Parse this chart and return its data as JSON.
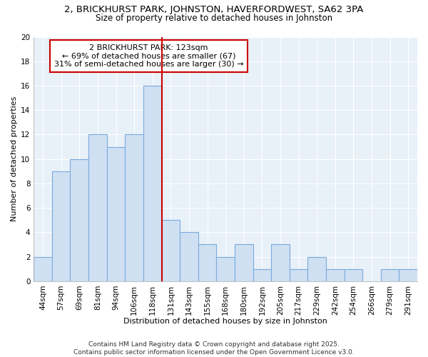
{
  "title": "2, BRICKHURST PARK, JOHNSTON, HAVERFORDWEST, SA62 3PA",
  "subtitle": "Size of property relative to detached houses in Johnston",
  "xlabel": "Distribution of detached houses by size in Johnston",
  "ylabel": "Number of detached properties",
  "categories": [
    "44sqm",
    "57sqm",
    "69sqm",
    "81sqm",
    "94sqm",
    "106sqm",
    "118sqm",
    "131sqm",
    "143sqm",
    "155sqm",
    "168sqm",
    "180sqm",
    "192sqm",
    "205sqm",
    "217sqm",
    "229sqm",
    "242sqm",
    "254sqm",
    "266sqm",
    "279sqm",
    "291sqm"
  ],
  "values": [
    2,
    9,
    10,
    12,
    11,
    12,
    16,
    5,
    4,
    3,
    2,
    3,
    1,
    3,
    1,
    2,
    1,
    1,
    0,
    1,
    1
  ],
  "bar_color": "#cfe0f3",
  "bar_edge_color": "#7aaadc",
  "vline_x_index": 6,
  "vline_color": "#cc0000",
  "ylim": [
    0,
    20
  ],
  "yticks": [
    0,
    2,
    4,
    6,
    8,
    10,
    12,
    14,
    16,
    18,
    20
  ],
  "plot_bg_color": "#e8f0f8",
  "grid_color": "#ffffff",
  "annotation_title": "2 BRICKHURST PARK: 123sqm",
  "annotation_line2": "← 69% of detached houses are smaller (67)",
  "annotation_line3": "31% of semi-detached houses are larger (30) →",
  "annotation_box_color": "#ffffff",
  "annotation_box_edge": "#cc0000",
  "footer1": "Contains HM Land Registry data © Crown copyright and database right 2025.",
  "footer2": "Contains public sector information licensed under the Open Government Licence v3.0.",
  "background_color": "#ffffff",
  "title_fontsize": 9.5,
  "subtitle_fontsize": 8.5,
  "axis_label_fontsize": 8,
  "tick_fontsize": 7.5,
  "annotation_fontsize": 8,
  "footer_fontsize": 6.5
}
